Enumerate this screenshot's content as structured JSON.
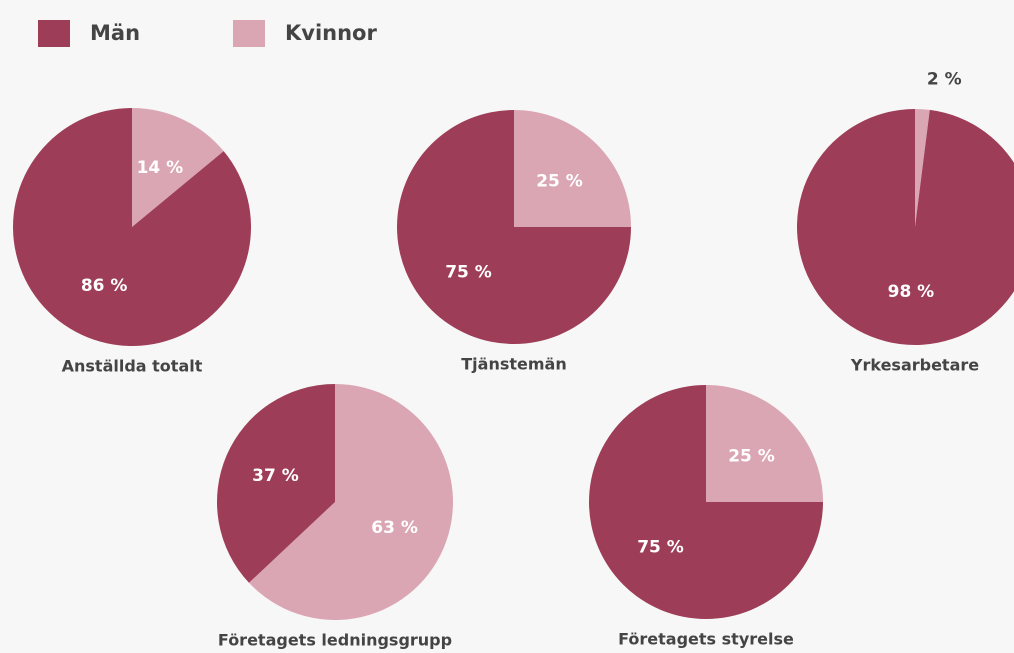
{
  "legend": [
    {
      "name": "Män",
      "color": "#9e3d58"
    },
    {
      "name": "Kvinnor",
      "color": "#dba6b4"
    }
  ],
  "chart_data": [
    {
      "type": "pie",
      "title": "Anställda totalt",
      "values": [
        86,
        14
      ],
      "value_labels": [
        "86 %",
        "14 %"
      ]
    },
    {
      "type": "pie",
      "title": "Tjänstemän",
      "values": [
        75,
        25
      ],
      "value_labels": [
        "75 %",
        "25 %"
      ]
    },
    {
      "type": "pie",
      "title": "Yrkesarbetare",
      "values": [
        98,
        2
      ],
      "value_labels": [
        "98 %",
        "2 %"
      ]
    },
    {
      "type": "pie",
      "title": "Företagets ledningsgrupp",
      "values": [
        37,
        63
      ],
      "value_labels": [
        "37 %",
        "63 %"
      ]
    },
    {
      "type": "pie",
      "title": "Företagets styrelse",
      "values": [
        75,
        25
      ],
      "value_labels": [
        "75 %",
        "25 %"
      ]
    }
  ]
}
